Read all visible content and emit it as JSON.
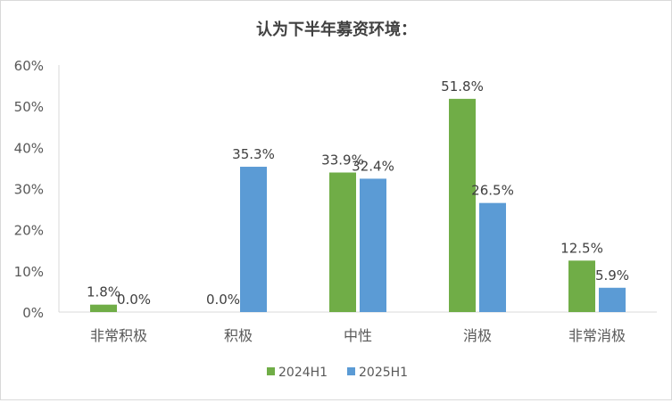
{
  "chart_data": {
    "type": "bar",
    "title": "认为下半年募资环境：",
    "categories": [
      "非常积极",
      "积极",
      "中性",
      "消极",
      "非常消极"
    ],
    "series": [
      {
        "name": "2024H1",
        "values": [
          1.8,
          0.0,
          33.9,
          51.8,
          12.5
        ],
        "labels": [
          "1.8%",
          "0.0%",
          "33.9%",
          "51.8%",
          "12.5%"
        ],
        "color": "#70AD47"
      },
      {
        "name": "2025H1",
        "values": [
          0.0,
          35.3,
          32.4,
          26.5,
          5.9
        ],
        "labels": [
          "0.0%",
          "35.3%",
          "32.4%",
          "26.5%",
          "5.9%"
        ],
        "color": "#5B9BD5"
      }
    ],
    "ylim": [
      0,
      60
    ],
    "yticks": [
      "0%",
      "10%",
      "20%",
      "30%",
      "40%",
      "50%",
      "60%"
    ],
    "grid": false,
    "legend": "bottom"
  }
}
